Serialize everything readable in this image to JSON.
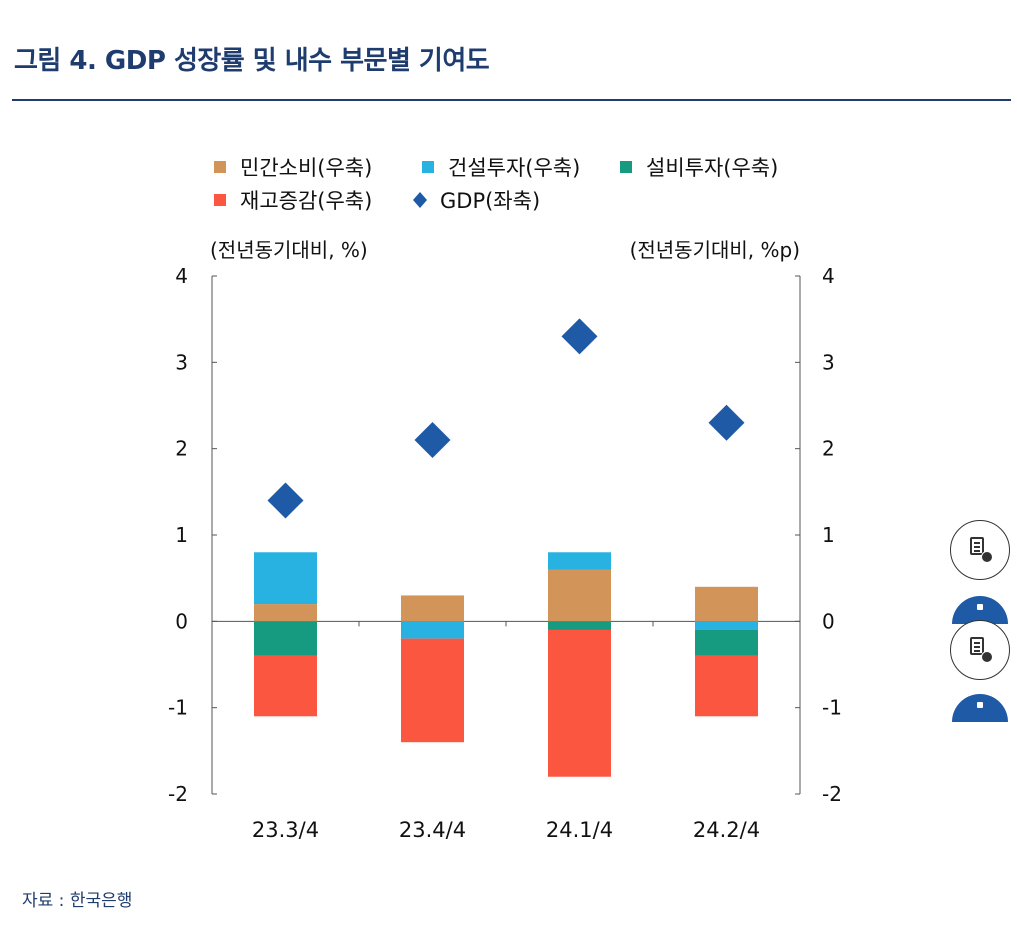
{
  "title": "그림 4. GDP 성장률 및 내수 부문별 기여도",
  "source": "자료 : 한국은행",
  "chart_data": {
    "type": "bar",
    "stacked": true,
    "categories": [
      "23.3/4",
      "23.4/4",
      "24.1/4",
      "24.2/4"
    ],
    "left_axis_label": "(전년동기대비, %)",
    "right_axis_label": "(전년동기대비, %p)",
    "ylim": [
      -2,
      4
    ],
    "yticks": [
      "4",
      "3",
      "2",
      "1",
      "0",
      "-1",
      "-2"
    ],
    "series": [
      {
        "name": "민간소비(우축)",
        "color": "#d29459",
        "values": [
          0.2,
          0.3,
          0.6,
          0.4
        ]
      },
      {
        "name": "건설투자(우축)",
        "color": "#27b2e2",
        "values": [
          0.6,
          -0.2,
          0.2,
          -0.1
        ]
      },
      {
        "name": "설비투자(우축)",
        "color": "#169b80",
        "values": [
          -0.4,
          0.0,
          -0.1,
          -0.3
        ]
      },
      {
        "name": "재고증감(우축)",
        "color": "#fa5640",
        "values": [
          -0.7,
          -1.2,
          -1.7,
          -0.7
        ]
      }
    ],
    "gdp": {
      "name": "GDP(좌축)",
      "color": "#1f5aa6",
      "values": [
        1.4,
        2.1,
        3.3,
        2.3
      ]
    },
    "legend_placement": "top"
  }
}
